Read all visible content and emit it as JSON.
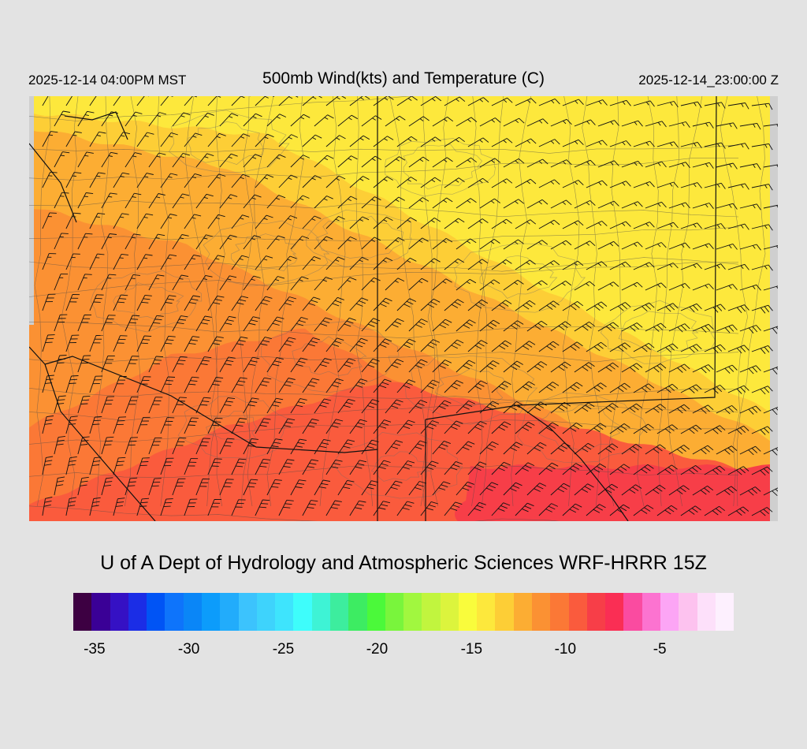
{
  "header": {
    "valid_local": "2025-12-14 04:00PM MST",
    "title": "500mb Wind(kts) and Temperature (C)",
    "valid_utc": "2025-12-14_23:00:00 Z"
  },
  "footer": {
    "producer": "U of A Dept of Hydrology and Atmospheric Sciences WRF-HRRR 15Z"
  },
  "map": {
    "field": "500mb temperature (C) shaded, wind barbs (kts)",
    "temperature_bands": [
      {
        "label": "warmest (SE)",
        "color": "#f73e48"
      },
      {
        "label": "band 2",
        "color": "#fa5b3d"
      },
      {
        "label": "band 3",
        "color": "#fb7836"
      },
      {
        "label": "band 4",
        "color": "#fb9133"
      },
      {
        "label": "band 5",
        "color": "#fcad33"
      },
      {
        "label": "band 6",
        "color": "#fdce36"
      },
      {
        "label": "coldest (NE)",
        "color": "#fde83c"
      }
    ],
    "out_of_domain_color": "#cfcfcf"
  },
  "colorbar": {
    "colors": [
      "#3d0042",
      "#3a0096",
      "#3511c4",
      "#1b2de6",
      "#0054f5",
      "#0e74fb",
      "#0a86f7",
      "#0c9cfb",
      "#22acfb",
      "#3cc3fd",
      "#3ed3fc",
      "#3ee4fd",
      "#3efdfb",
      "#3ef3d5",
      "#3ded9e",
      "#3dec62",
      "#4bf93a",
      "#79f53c",
      "#a1f73f",
      "#c1f53e",
      "#dcf43d",
      "#f9fc3c",
      "#fde83c",
      "#fdce36",
      "#fcad33",
      "#fb9133",
      "#fb7836",
      "#fa5b3d",
      "#f73e48",
      "#fa2e54",
      "#fa4ba0",
      "#fc73d0",
      "#fca5f5",
      "#fdc2ef",
      "#fde0fa",
      "#fdf0fe"
    ],
    "ticks": [
      {
        "label": "-35",
        "pos": 0.032
      },
      {
        "label": "-30",
        "pos": 0.175
      },
      {
        "label": "-25",
        "pos": 0.318
      },
      {
        "label": "-20",
        "pos": 0.46
      },
      {
        "label": "-15",
        "pos": 0.603
      },
      {
        "label": "-10",
        "pos": 0.745
      },
      {
        "label": "-5",
        "pos": 0.888
      }
    ]
  }
}
